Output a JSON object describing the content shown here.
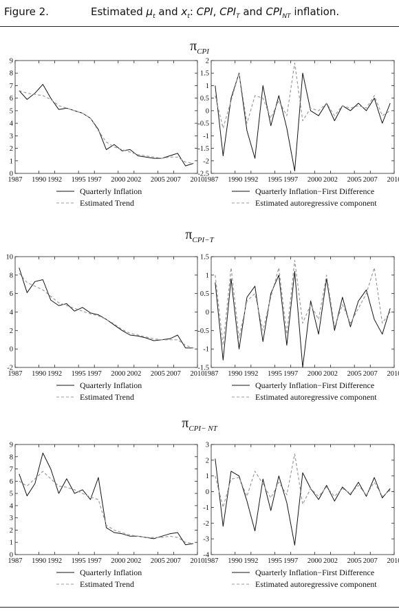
{
  "header": {
    "figure_label": "Figure 2.",
    "title_parts": [
      {
        "t": "Estimated "
      },
      {
        "t": "μ",
        "i": true
      },
      {
        "t": "t",
        "sub": true,
        "i": true
      },
      {
        "t": " and "
      },
      {
        "t": "x",
        "i": true
      },
      {
        "t": "t",
        "sub": true,
        "i": true
      },
      {
        "t": ": "
      },
      {
        "t": "CPI",
        "i": true
      },
      {
        "t": ", "
      },
      {
        "t": "CPI",
        "i": true
      },
      {
        "t": "T",
        "sub": true,
        "i": true
      },
      {
        "t": " and "
      },
      {
        "t": "CPI",
        "i": true
      },
      {
        "t": "NT",
        "sub": true,
        "i": true
      },
      {
        "t": " inflation."
      }
    ]
  },
  "sections": [
    {
      "symbol": "π",
      "subscript": "CPI"
    },
    {
      "symbol": "π",
      "subscript": "CPI−T"
    },
    {
      "symbol": "π",
      "subscript": "CPI− NT"
    }
  ],
  "chart_data": [
    {
      "id": "cpi-trend",
      "type": "line",
      "x_tick_labels": [
        "1987",
        "1990",
        "1992",
        "1995",
        "1997",
        "2000",
        "2002",
        "2005",
        "2007",
        "2010"
      ],
      "xlim": [
        1987,
        2010
      ],
      "ylim": [
        0,
        9
      ],
      "y_ticks": [
        0,
        1,
        2,
        3,
        4,
        5,
        6,
        7,
        8,
        9
      ],
      "legend": [
        "Quarterly Inflation",
        "Estimated Trend"
      ],
      "x": [
        1987.5,
        1988.5,
        1989.5,
        1990.5,
        1991.5,
        1992.5,
        1993.5,
        1994.5,
        1995.5,
        1996.5,
        1997.5,
        1998.5,
        1999.5,
        2000.5,
        2001.5,
        2002.5,
        2003.5,
        2004.5,
        2005.5,
        2006.5,
        2007.5,
        2008.5,
        2009.5
      ],
      "series": [
        {
          "name": "Quarterly Inflation",
          "dashed": false,
          "values": [
            6.6,
            5.9,
            6.4,
            7.1,
            6.0,
            5.1,
            5.2,
            5.0,
            4.8,
            4.4,
            3.5,
            1.9,
            2.3,
            1.8,
            1.9,
            1.4,
            1.3,
            1.2,
            1.2,
            1.4,
            1.6,
            0.6,
            0.8
          ]
        },
        {
          "name": "Estimated Trend",
          "dashed": true,
          "values": [
            6.6,
            6.4,
            6.3,
            6.2,
            5.9,
            5.4,
            5.2,
            5.0,
            4.8,
            4.4,
            3.4,
            2.5,
            2.1,
            1.9,
            1.7,
            1.5,
            1.4,
            1.3,
            1.2,
            1.3,
            1.3,
            0.9,
            0.8
          ]
        }
      ]
    },
    {
      "id": "cpi-ar",
      "type": "line",
      "x_tick_labels": [
        "1987",
        "1990",
        "1992",
        "1995",
        "1997",
        "2000",
        "2002",
        "2005",
        "2007",
        "2010"
      ],
      "xlim": [
        1987,
        2010
      ],
      "ylim": [
        -2.5,
        2
      ],
      "y_ticks": [
        -2.5,
        -2,
        -1.5,
        -1,
        -0.5,
        0,
        0.5,
        1,
        1.5,
        2
      ],
      "legend": [
        "Quarterly Inflation−First Difference",
        "Estimated autoregressive component"
      ],
      "x": [
        1987.5,
        1988.5,
        1989.5,
        1990.5,
        1991.5,
        1992.5,
        1993.5,
        1994.5,
        1995.5,
        1996.5,
        1997.5,
        1998.5,
        1999.5,
        2000.5,
        2001.5,
        2002.5,
        2003.5,
        2004.5,
        2005.5,
        2006.5,
        2007.5,
        2008.5,
        2009.5
      ],
      "series": [
        {
          "name": "Quarterly Inflation−First Difference",
          "dashed": false,
          "values": [
            1.0,
            -1.8,
            0.5,
            1.5,
            -0.8,
            -1.9,
            1.0,
            -0.6,
            0.6,
            -0.7,
            -2.4,
            1.5,
            0.0,
            -0.2,
            0.3,
            -0.4,
            0.2,
            0.0,
            0.3,
            0.0,
            0.5,
            -0.5,
            0.3
          ]
        },
        {
          "name": "Estimated autoregressive component",
          "dashed": true,
          "values": [
            0.6,
            -0.7,
            0.4,
            1.5,
            -0.5,
            0.6,
            0.5,
            -0.3,
            0.4,
            -0.2,
            1.9,
            -0.4,
            0.1,
            0.0,
            0.3,
            -0.2,
            0.2,
            0.1,
            0.2,
            0.1,
            0.6,
            -0.2,
            0.0
          ]
        }
      ]
    },
    {
      "id": "cpit-trend",
      "type": "line",
      "x_tick_labels": [
        "1987",
        "1990",
        "1992",
        "1995",
        "1997",
        "2000",
        "2002",
        "2005",
        "2007",
        "2010"
      ],
      "xlim": [
        1987,
        2010
      ],
      "ylim": [
        -2,
        10
      ],
      "y_ticks": [
        -2,
        0,
        2,
        4,
        6,
        8,
        10
      ],
      "legend": [
        "Quarterly Inflation",
        "Estimated Trend"
      ],
      "x": [
        1987.5,
        1988.5,
        1989.5,
        1990.5,
        1991.5,
        1992.5,
        1993.5,
        1994.5,
        1995.5,
        1996.5,
        1997.5,
        1998.5,
        1999.5,
        2000.5,
        2001.5,
        2002.5,
        2003.5,
        2004.5,
        2005.5,
        2006.5,
        2007.5,
        2008.5,
        2009.5
      ],
      "series": [
        {
          "name": "Quarterly Inflation",
          "dashed": false,
          "values": [
            8.8,
            6.1,
            7.3,
            7.5,
            5.3,
            4.7,
            4.9,
            4.1,
            4.5,
            3.9,
            3.7,
            3.2,
            2.6,
            2.0,
            1.5,
            1.4,
            1.2,
            0.9,
            1.0,
            1.1,
            1.5,
            0.1,
            0.1
          ]
        },
        {
          "name": "Estimated Trend",
          "dashed": true,
          "values": [
            8.2,
            7.2,
            6.8,
            6.4,
            5.7,
            5.0,
            4.7,
            4.4,
            4.1,
            3.8,
            3.6,
            3.2,
            2.7,
            2.1,
            1.7,
            1.5,
            1.3,
            1.1,
            1.0,
            1.0,
            1.0,
            0.4,
            0.1
          ]
        }
      ]
    },
    {
      "id": "cpit-ar",
      "type": "line",
      "x_tick_labels": [
        "1987",
        "1990",
        "1992",
        "1995",
        "1997",
        "2000",
        "2002",
        "2005",
        "2007",
        "2010"
      ],
      "xlim": [
        1987,
        2010
      ],
      "ylim": [
        -1.5,
        1.5
      ],
      "y_ticks": [
        -1.5,
        -1,
        -0.5,
        0,
        0.5,
        1,
        1.5
      ],
      "legend": [
        "Quarterly Inflation−First Difference",
        "Estimated autoregressive component"
      ],
      "x": [
        1987.5,
        1988.5,
        1989.5,
        1990.5,
        1991.5,
        1992.5,
        1993.5,
        1994.5,
        1995.5,
        1996.5,
        1997.5,
        1998.5,
        1999.5,
        2000.5,
        2001.5,
        2002.5,
        2003.5,
        2004.5,
        2005.5,
        2006.5,
        2007.5,
        2008.5,
        2009.5
      ],
      "series": [
        {
          "name": "Quarterly Inflation−First Difference",
          "dashed": false,
          "values": [
            0.8,
            -1.3,
            0.9,
            -1.0,
            0.4,
            0.7,
            -0.8,
            0.5,
            1.0,
            -0.9,
            1.1,
            -1.5,
            0.3,
            -0.6,
            0.9,
            -0.5,
            0.4,
            -0.4,
            0.3,
            0.6,
            -0.2,
            -0.6,
            0.1
          ]
        },
        {
          "name": "Estimated autoregressive component",
          "dashed": true,
          "values": [
            1.0,
            -0.9,
            1.2,
            -0.7,
            0.3,
            0.5,
            -0.5,
            0.4,
            1.2,
            -0.6,
            1.4,
            -0.3,
            0.2,
            -0.2,
            1.0,
            -0.4,
            0.2,
            -0.3,
            0.1,
            0.5,
            1.2,
            -0.3,
            0.0
          ]
        }
      ]
    },
    {
      "id": "cpint-trend",
      "type": "line",
      "x_tick_labels": [
        "1987",
        "1990",
        "1992",
        "1995",
        "1997",
        "2000",
        "2002",
        "2005",
        "2007",
        "2010"
      ],
      "xlim": [
        1987,
        2010
      ],
      "ylim": [
        0,
        9
      ],
      "y_ticks": [
        0,
        1,
        2,
        3,
        4,
        5,
        6,
        7,
        8,
        9
      ],
      "legend": [
        "Quarterly Inflation",
        "Estimated Trend"
      ],
      "x": [
        1987.5,
        1988.5,
        1989.5,
        1990.5,
        1991.5,
        1992.5,
        1993.5,
        1994.5,
        1995.5,
        1996.5,
        1997.5,
        1998.5,
        1999.5,
        2000.5,
        2001.5,
        2002.5,
        2003.5,
        2004.5,
        2005.5,
        2006.5,
        2007.5,
        2008.5,
        2009.5
      ],
      "series": [
        {
          "name": "Quarterly Inflation",
          "dashed": false,
          "values": [
            6.6,
            4.8,
            5.8,
            8.3,
            7.0,
            5.0,
            6.2,
            5.0,
            5.3,
            4.5,
            6.3,
            2.2,
            1.8,
            1.7,
            1.5,
            1.5,
            1.4,
            1.3,
            1.5,
            1.7,
            1.8,
            0.8,
            0.9
          ]
        },
        {
          "name": "Estimated Trend",
          "dashed": true,
          "values": [
            6.0,
            5.6,
            6.2,
            6.8,
            6.2,
            5.6,
            5.5,
            5.3,
            5.0,
            4.7,
            4.5,
            2.4,
            2.0,
            1.8,
            1.6,
            1.5,
            1.4,
            1.4,
            1.4,
            1.5,
            1.4,
            1.0,
            0.9
          ]
        }
      ]
    },
    {
      "id": "cpint-ar",
      "type": "line",
      "x_tick_labels": [
        "1987",
        "1990",
        "1992",
        "1995",
        "1997",
        "2000",
        "2002",
        "2005",
        "2007",
        "2010"
      ],
      "xlim": [
        1987,
        2010
      ],
      "ylim": [
        -4,
        3
      ],
      "y_ticks": [
        -4,
        -3,
        -2,
        -1,
        0,
        1,
        2,
        3
      ],
      "legend": [
        "Quarterly Inflation−First Difference",
        "Estimated autoregressive component"
      ],
      "x": [
        1987.5,
        1988.5,
        1989.5,
        1990.5,
        1991.5,
        1992.5,
        1993.5,
        1994.5,
        1995.5,
        1996.5,
        1997.5,
        1998.5,
        1999.5,
        2000.5,
        2001.5,
        2002.5,
        2003.5,
        2004.5,
        2005.5,
        2006.5,
        2007.5,
        2008.5,
        2009.5
      ],
      "series": [
        {
          "name": "Quarterly Inflation−First Difference",
          "dashed": false,
          "values": [
            2.1,
            -2.2,
            1.3,
            1.0,
            -0.6,
            -2.5,
            0.8,
            -1.2,
            1.0,
            -0.7,
            -3.4,
            1.2,
            0.2,
            -0.5,
            0.4,
            -0.6,
            0.3,
            -0.2,
            0.6,
            -0.3,
            0.9,
            -0.4,
            0.2
          ]
        },
        {
          "name": "Estimated autoregressive component",
          "dashed": true,
          "values": [
            1.0,
            -1.0,
            0.8,
            0.9,
            -0.3,
            1.3,
            0.5,
            -0.4,
            0.6,
            -0.2,
            2.4,
            -0.8,
            0.2,
            -0.3,
            0.3,
            -0.3,
            0.2,
            -0.1,
            0.4,
            -0.2,
            0.6,
            -0.3,
            0.1
          ]
        }
      ]
    }
  ]
}
